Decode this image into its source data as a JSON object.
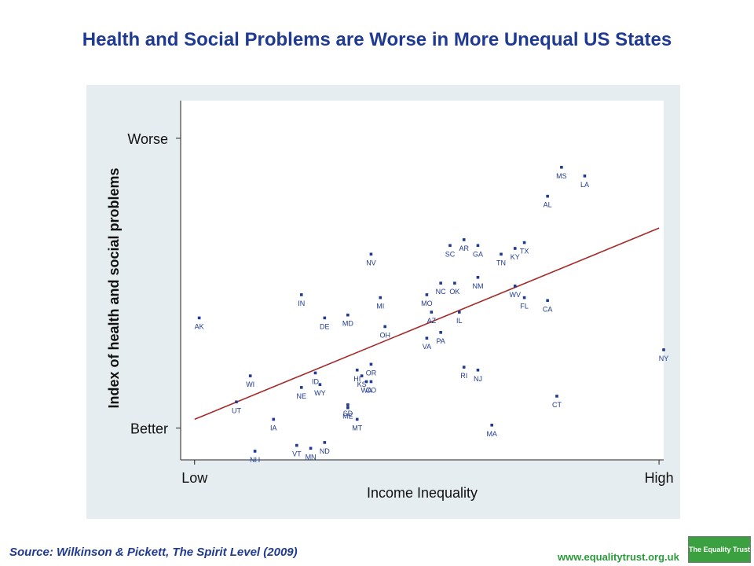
{
  "title": "Health and Social Problems are Worse in More Unequal US States",
  "source": "Source: Wilkinson & Pickett, The Spirit Level (2009)",
  "url": "www.equalitytrust.org.uk",
  "logo_text": "The Equality Trust",
  "colors": {
    "title": "#1f3a93",
    "points": "#1f3a93",
    "labels": "#1f3a93",
    "trend_line": "#a52a2a",
    "panel": "#e6edf1",
    "url": "#2a9a3a",
    "logo": "#3aa040"
  },
  "chart_data": {
    "type": "scatter",
    "title": "Health and Social Problems are Worse in More Unequal US States",
    "xlabel": "Income Inequality",
    "ylabel": "Index of health and social problems",
    "x_ticks": [
      {
        "value": 0,
        "label": "Low"
      },
      {
        "value": 100,
        "label": "High"
      }
    ],
    "y_ticks": [
      {
        "value": 0,
        "label": "Better"
      },
      {
        "value": 100,
        "label": "Worse"
      }
    ],
    "xlim": [
      -3,
      101
    ],
    "ylim": [
      -11,
      113
    ],
    "grid": false,
    "trend_line": {
      "x": [
        0,
        100
      ],
      "y": [
        3,
        69
      ]
    },
    "points": [
      {
        "label": "AK",
        "x": 1,
        "y": 38
      },
      {
        "label": "MS",
        "x": 79,
        "y": 90
      },
      {
        "label": "LA",
        "x": 84,
        "y": 87
      },
      {
        "label": "AL",
        "x": 76,
        "y": 80
      },
      {
        "label": "SC",
        "x": 55,
        "y": 63
      },
      {
        "label": "AR",
        "x": 58,
        "y": 65
      },
      {
        "label": "GA",
        "x": 61,
        "y": 63
      },
      {
        "label": "TX",
        "x": 71,
        "y": 64
      },
      {
        "label": "KY",
        "x": 69,
        "y": 62
      },
      {
        "label": "TN",
        "x": 66,
        "y": 60
      },
      {
        "label": "NV",
        "x": 38,
        "y": 60
      },
      {
        "label": "NM",
        "x": 61,
        "y": 52
      },
      {
        "label": "NC",
        "x": 53,
        "y": 50
      },
      {
        "label": "OK",
        "x": 56,
        "y": 50
      },
      {
        "label": "WV",
        "x": 69,
        "y": 49
      },
      {
        "label": "FL",
        "x": 71,
        "y": 45
      },
      {
        "label": "CA",
        "x": 76,
        "y": 44
      },
      {
        "label": "IN",
        "x": 23,
        "y": 46
      },
      {
        "label": "MI",
        "x": 40,
        "y": 45
      },
      {
        "label": "MO",
        "x": 50,
        "y": 46
      },
      {
        "label": "AZ",
        "x": 51,
        "y": 40
      },
      {
        "label": "IL",
        "x": 57,
        "y": 40
      },
      {
        "label": "DE",
        "x": 28,
        "y": 38
      },
      {
        "label": "MD",
        "x": 33,
        "y": 39
      },
      {
        "label": "OH",
        "x": 41,
        "y": 35
      },
      {
        "label": "PA",
        "x": 53,
        "y": 33
      },
      {
        "label": "VA",
        "x": 50,
        "y": 31
      },
      {
        "label": "NY",
        "x": 101,
        "y": 27
      },
      {
        "label": "RI",
        "x": 58,
        "y": 21
      },
      {
        "label": "NJ",
        "x": 61,
        "y": 20
      },
      {
        "label": "OR",
        "x": 38,
        "y": 22
      },
      {
        "label": "HI",
        "x": 35,
        "y": 20
      },
      {
        "label": "KS",
        "x": 36,
        "y": 18
      },
      {
        "label": "CO",
        "x": 38,
        "y": 16
      },
      {
        "label": "WA",
        "x": 37,
        "y": 16
      },
      {
        "label": "ID",
        "x": 26,
        "y": 19
      },
      {
        "label": "WI",
        "x": 12,
        "y": 18
      },
      {
        "label": "WY",
        "x": 27,
        "y": 15
      },
      {
        "label": "NE",
        "x": 23,
        "y": 14
      },
      {
        "label": "UT",
        "x": 9,
        "y": 9
      },
      {
        "label": "CT",
        "x": 78,
        "y": 11
      },
      {
        "label": "SD",
        "x": 33,
        "y": 8
      },
      {
        "label": "ME",
        "x": 33,
        "y": 7
      },
      {
        "label": "IA",
        "x": 17,
        "y": 3
      },
      {
        "label": "MT",
        "x": 35,
        "y": 3
      },
      {
        "label": "MA",
        "x": 64,
        "y": 1
      },
      {
        "label": "ND",
        "x": 28,
        "y": -5
      },
      {
        "label": "VT",
        "x": 22,
        "y": -6
      },
      {
        "label": "MN",
        "x": 25,
        "y": -7
      },
      {
        "label": "NH",
        "x": 13,
        "y": -8
      }
    ]
  }
}
